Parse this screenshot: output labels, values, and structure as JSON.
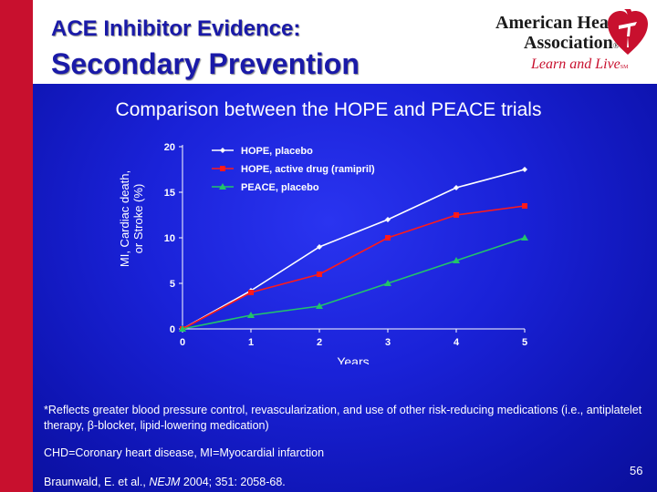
{
  "slide": {
    "title_line1": "ACE Inhibitor Evidence:",
    "title_line2": "Secondary Prevention",
    "subtitle": "Comparison between the HOPE and PEACE trials",
    "page_number": "56"
  },
  "brand": {
    "name_line1": "American Heart",
    "name_line2": "Association",
    "registered_mark": "®",
    "tagline": "Learn and Live",
    "tagline_mark": "SM",
    "logo_icon": "heart-torch-icon"
  },
  "colors": {
    "accent_red": "#c8102e",
    "title_blue": "#1a1aa8",
    "series_hope_placebo": "#ffffff",
    "series_hope_ramipril": "#ff1a1a",
    "series_peace_placebo": "#22c46a"
  },
  "chart_data": {
    "type": "line",
    "title": "",
    "xlabel": "Years",
    "ylabel": "MI, Cardiac death, or Stroke (%)",
    "ylabel_line1": "MI, Cardiac death,",
    "ylabel_line2": "or Stroke (%)",
    "x": [
      0,
      1,
      2,
      3,
      4,
      5
    ],
    "xlim": [
      0,
      5
    ],
    "ylim": [
      0,
      20
    ],
    "y_ticks": [
      0,
      5,
      10,
      15,
      20
    ],
    "grid": false,
    "legend_position": "top-left",
    "series": [
      {
        "name": "HOPE, placebo",
        "marker": "diamond",
        "color": "#ffffff",
        "values": [
          0,
          4.2,
          9,
          12,
          15.5,
          17.5
        ]
      },
      {
        "name": "HOPE, active drug (ramipril)",
        "marker": "square",
        "color": "#ff1a1a",
        "values": [
          0,
          4,
          6,
          10,
          12.5,
          13.5
        ]
      },
      {
        "name": "PEACE, placebo",
        "marker": "triangle",
        "color": "#22c46a",
        "values": [
          0,
          1.5,
          2.5,
          5,
          7.5,
          10
        ]
      }
    ]
  },
  "notes": {
    "footnote": "*Reflects greater blood pressure control, revascularization, and use of other risk-reducing medications (i.e., antiplatelet therapy, β-blocker, lipid-lowering medication)",
    "abbreviations": "CHD=Coronary heart disease, MI=Myocardial infarction",
    "citation_prefix": "Braunwald, E. et al., ",
    "citation_journal": "NEJM",
    "citation_suffix": " 2004; 351: 2058-68."
  }
}
